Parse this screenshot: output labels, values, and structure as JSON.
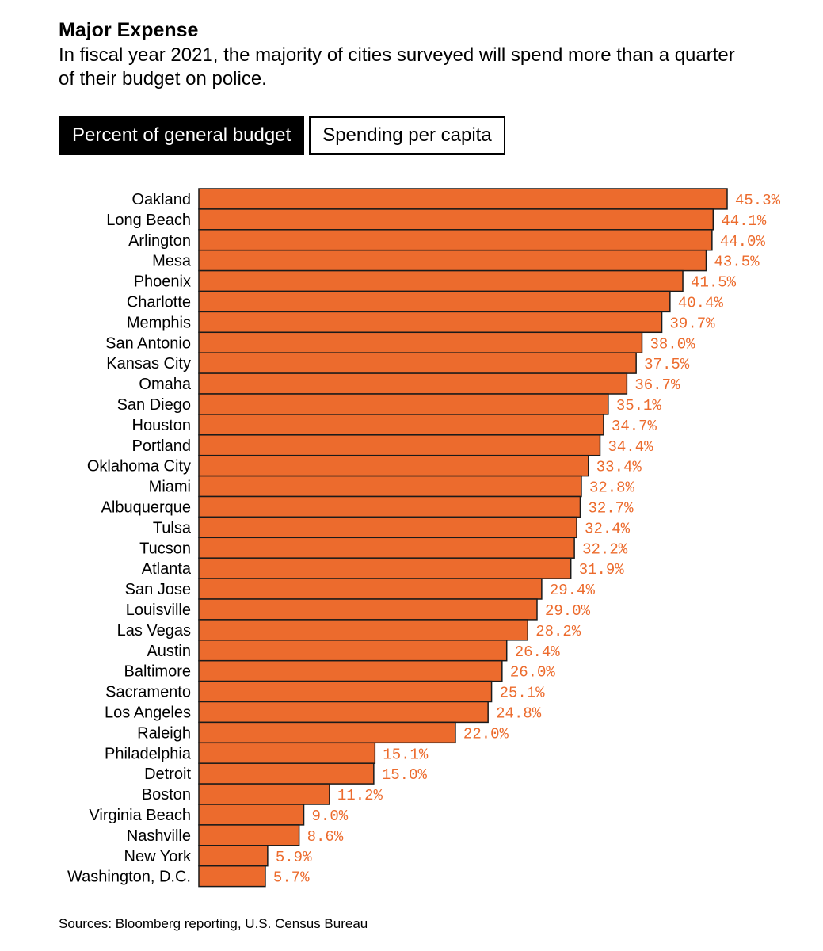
{
  "header": {
    "title": "Major Expense",
    "subtitle": "In fiscal year 2021, the majority of cities surveyed will spend more than a quarter of their budget on police."
  },
  "toggles": {
    "active_label": "Percent of general budget",
    "inactive_label": "Spending per capita"
  },
  "colors": {
    "bar_fill": "#ec6b2d",
    "bar_stroke": "#1a1a1a",
    "value_label": "#ec6b2d"
  },
  "chart_data": {
    "type": "bar",
    "orientation": "horizontal",
    "title": "Major Expense",
    "xlabel": "",
    "ylabel": "",
    "value_suffix": "%",
    "xlim": [
      0,
      45.3
    ],
    "categories": [
      "Oakland",
      "Long Beach",
      "Arlington",
      "Mesa",
      "Phoenix",
      "Charlotte",
      "Memphis",
      "San Antonio",
      "Kansas City",
      "Omaha",
      "San Diego",
      "Houston",
      "Portland",
      "Oklahoma City",
      "Miami",
      "Albuquerque",
      "Tulsa",
      "Tucson",
      "Atlanta",
      "San Jose",
      "Louisville",
      "Las Vegas",
      "Austin",
      "Baltimore",
      "Sacramento",
      "Los Angeles",
      "Raleigh",
      "Philadelphia",
      "Detroit",
      "Boston",
      "Virginia Beach",
      "Nashville",
      "New York",
      "Washington, D.C."
    ],
    "values": [
      45.3,
      44.1,
      44.0,
      43.5,
      41.5,
      40.4,
      39.7,
      38.0,
      37.5,
      36.7,
      35.1,
      34.7,
      34.4,
      33.4,
      32.8,
      32.7,
      32.4,
      32.2,
      31.9,
      29.4,
      29.0,
      28.2,
      26.4,
      26.0,
      25.1,
      24.8,
      22.0,
      15.1,
      15.0,
      11.2,
      9.0,
      8.6,
      5.9,
      5.7
    ],
    "value_labels": [
      "45.3%",
      "44.1%",
      "44.0%",
      "43.5%",
      "41.5%",
      "40.4%",
      "39.7%",
      "38.0%",
      "37.5%",
      "36.7%",
      "35.1%",
      "34.7%",
      "34.4%",
      "33.4%",
      "32.8%",
      "32.7%",
      "32.4%",
      "32.2%",
      "31.9%",
      "29.4%",
      "29.0%",
      "28.2%",
      "26.4%",
      "26.0%",
      "25.1%",
      "24.8%",
      "22.0%",
      "15.1%",
      "15.0%",
      "11.2%",
      "9.0%",
      "8.6%",
      "5.9%",
      "5.7%"
    ]
  },
  "footer": {
    "source": "Sources: Bloomberg reporting, U.S. Census Bureau"
  }
}
